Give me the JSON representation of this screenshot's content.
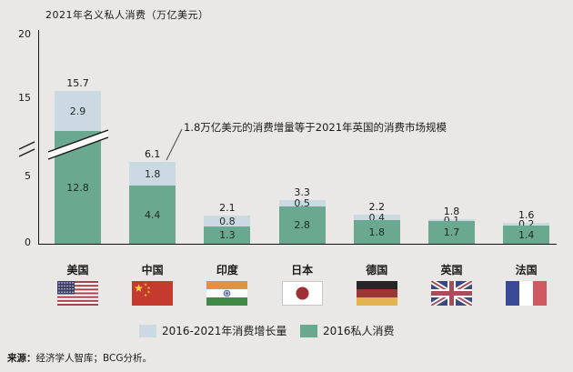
{
  "title": "2021年名义私人消费（万亿美元）",
  "annotation": "1.8万亿美元的消费增量等于2021年英国的消费市场规模",
  "y_axis": {
    "ticks": [
      0,
      5,
      15,
      20
    ],
    "break_between": [
      5,
      15
    ]
  },
  "legend": [
    {
      "label": "2016-2021年消费增长量",
      "color": "#cbd9e3"
    },
    {
      "label": "2016私人消费",
      "color": "#6aa88f"
    }
  ],
  "source": {
    "label": "来源：",
    "text": "经济学人智库；BCG分析。"
  },
  "colors": {
    "growth": "#cbd9e3",
    "base": "#6aa88f",
    "background": "#e9e8e7",
    "axis": "#151515"
  },
  "chart_data": {
    "type": "bar",
    "stacked": true,
    "title": "2021年名义私人消费（万亿美元）",
    "categories": [
      "美国",
      "中国",
      "印度",
      "日本",
      "德国",
      "英国",
      "法国"
    ],
    "codes": [
      "us",
      "cn",
      "in",
      "jp",
      "de",
      "uk",
      "fr"
    ],
    "series": [
      {
        "name": "2016私人消费",
        "color": "#6aa88f",
        "values": [
          12.8,
          4.4,
          1.3,
          2.8,
          1.8,
          1.7,
          1.4
        ]
      },
      {
        "name": "2016-2021年消费增长量",
        "color": "#cbd9e3",
        "values": [
          2.9,
          1.8,
          0.8,
          0.5,
          0.4,
          0.1,
          0.2
        ]
      }
    ],
    "totals": [
      15.7,
      6.1,
      2.1,
      3.3,
      2.2,
      1.8,
      1.6
    ],
    "ylim": [
      0,
      20
    ],
    "axis_break": true,
    "legend_position": "bottom",
    "grid": false
  }
}
